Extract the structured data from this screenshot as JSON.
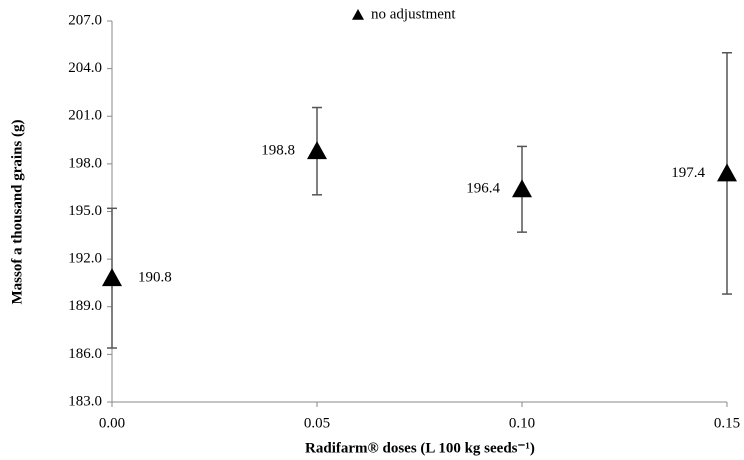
{
  "chart_data": {
    "type": "scatter",
    "xlabel": "Radifarm® doses (L 100 kg seeds⁻¹)",
    "ylabel": "Massof a thousand grains (g)",
    "x": [
      0,
      0.05,
      0.1,
      0.15
    ],
    "series": [
      {
        "name": "no adjustment",
        "color": "#000000",
        "values": [
          190.8,
          198.8,
          196.4,
          197.4
        ],
        "errors": [
          4.4,
          2.75,
          2.7,
          7.6
        ]
      }
    ],
    "xlim": [
      0,
      0.15
    ],
    "xticks": [
      {
        "value": 0,
        "label": "0.00"
      },
      {
        "value": 0.05,
        "label": "0.05"
      },
      {
        "value": 0.1,
        "label": "0.10"
      },
      {
        "value": 0.15,
        "label": "0.15"
      }
    ],
    "ylim": [
      183,
      207
    ],
    "yticks": [
      {
        "value": 183,
        "label": "183.0"
      },
      {
        "value": 186,
        "label": "186.0"
      },
      {
        "value": 189,
        "label": "189.0"
      },
      {
        "value": 192,
        "label": "192.0"
      },
      {
        "value": 195,
        "label": "195.0"
      },
      {
        "value": 198,
        "label": "198.0"
      },
      {
        "value": 201,
        "label": "201.0"
      },
      {
        "value": 204,
        "label": "204.0"
      },
      {
        "value": 207,
        "label": "207.0"
      }
    ],
    "grid": false,
    "legend": "top"
  }
}
